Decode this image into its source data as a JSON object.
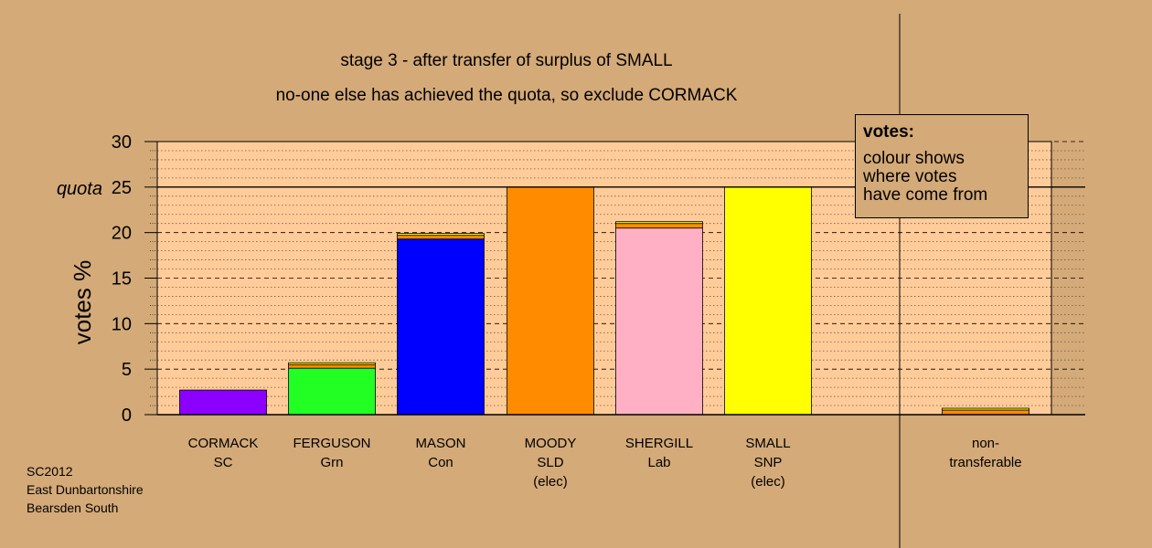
{
  "chart_data": {
    "type": "bar",
    "title": "stage 3 - after transfer of surplus of SMALL",
    "subtitle": "no-one else has achieved the quota, so exclude CORMACK",
    "ylabel": "votes %",
    "ylim": [
      0,
      30
    ],
    "yticks": [
      0,
      5,
      10,
      15,
      20,
      25,
      30
    ],
    "quota": 25,
    "quota_label": "quota",
    "grid": true,
    "categories": [
      {
        "name": "CORMACK",
        "party": "SC",
        "note": ""
      },
      {
        "name": "FERGUSON",
        "party": "Grn",
        "note": ""
      },
      {
        "name": "MASON",
        "party": "Con",
        "note": ""
      },
      {
        "name": "MOODY",
        "party": "SLD",
        "note": "(elec)"
      },
      {
        "name": "SHERGILL",
        "party": "Lab",
        "note": ""
      },
      {
        "name": "SMALL",
        "party": "SNP",
        "note": "(elec)"
      },
      {
        "name": "non-",
        "party": "transferable",
        "note": ""
      }
    ],
    "bars": [
      {
        "segments": [
          {
            "value": 2.7,
            "color": "#8b00ff"
          }
        ]
      },
      {
        "segments": [
          {
            "value": 5.1,
            "color": "#22ff22"
          },
          {
            "value": 0.4,
            "color": "#ff8c00"
          },
          {
            "value": 0.2,
            "color": "#ffff00"
          }
        ]
      },
      {
        "segments": [
          {
            "value": 19.3,
            "color": "#0000ff"
          },
          {
            "value": 0.4,
            "color": "#ff8c00"
          },
          {
            "value": 0.2,
            "color": "#ffff00"
          }
        ]
      },
      {
        "segments": [
          {
            "value": 25.0,
            "color": "#ff8c00"
          }
        ]
      },
      {
        "segments": [
          {
            "value": 20.5,
            "color": "#ffb0c4"
          },
          {
            "value": 0.5,
            "color": "#ff8c00"
          },
          {
            "value": 0.2,
            "color": "#ffff00"
          }
        ]
      },
      {
        "segments": [
          {
            "value": 25.0,
            "color": "#ffff00"
          }
        ]
      },
      {
        "segments": [
          {
            "value": 0.5,
            "color": "#ff8c00"
          },
          {
            "value": 0.2,
            "color": "#ffff00"
          }
        ]
      }
    ],
    "colors": {
      "background": "#d4aa78",
      "plot_area": "#ffcc99"
    }
  },
  "legend": {
    "title": "votes:",
    "lines": [
      "colour shows",
      "where votes",
      "have come from"
    ]
  },
  "footer": {
    "lines": [
      "SC2012",
      "East Dunbartonshire",
      "Bearsden South"
    ]
  }
}
